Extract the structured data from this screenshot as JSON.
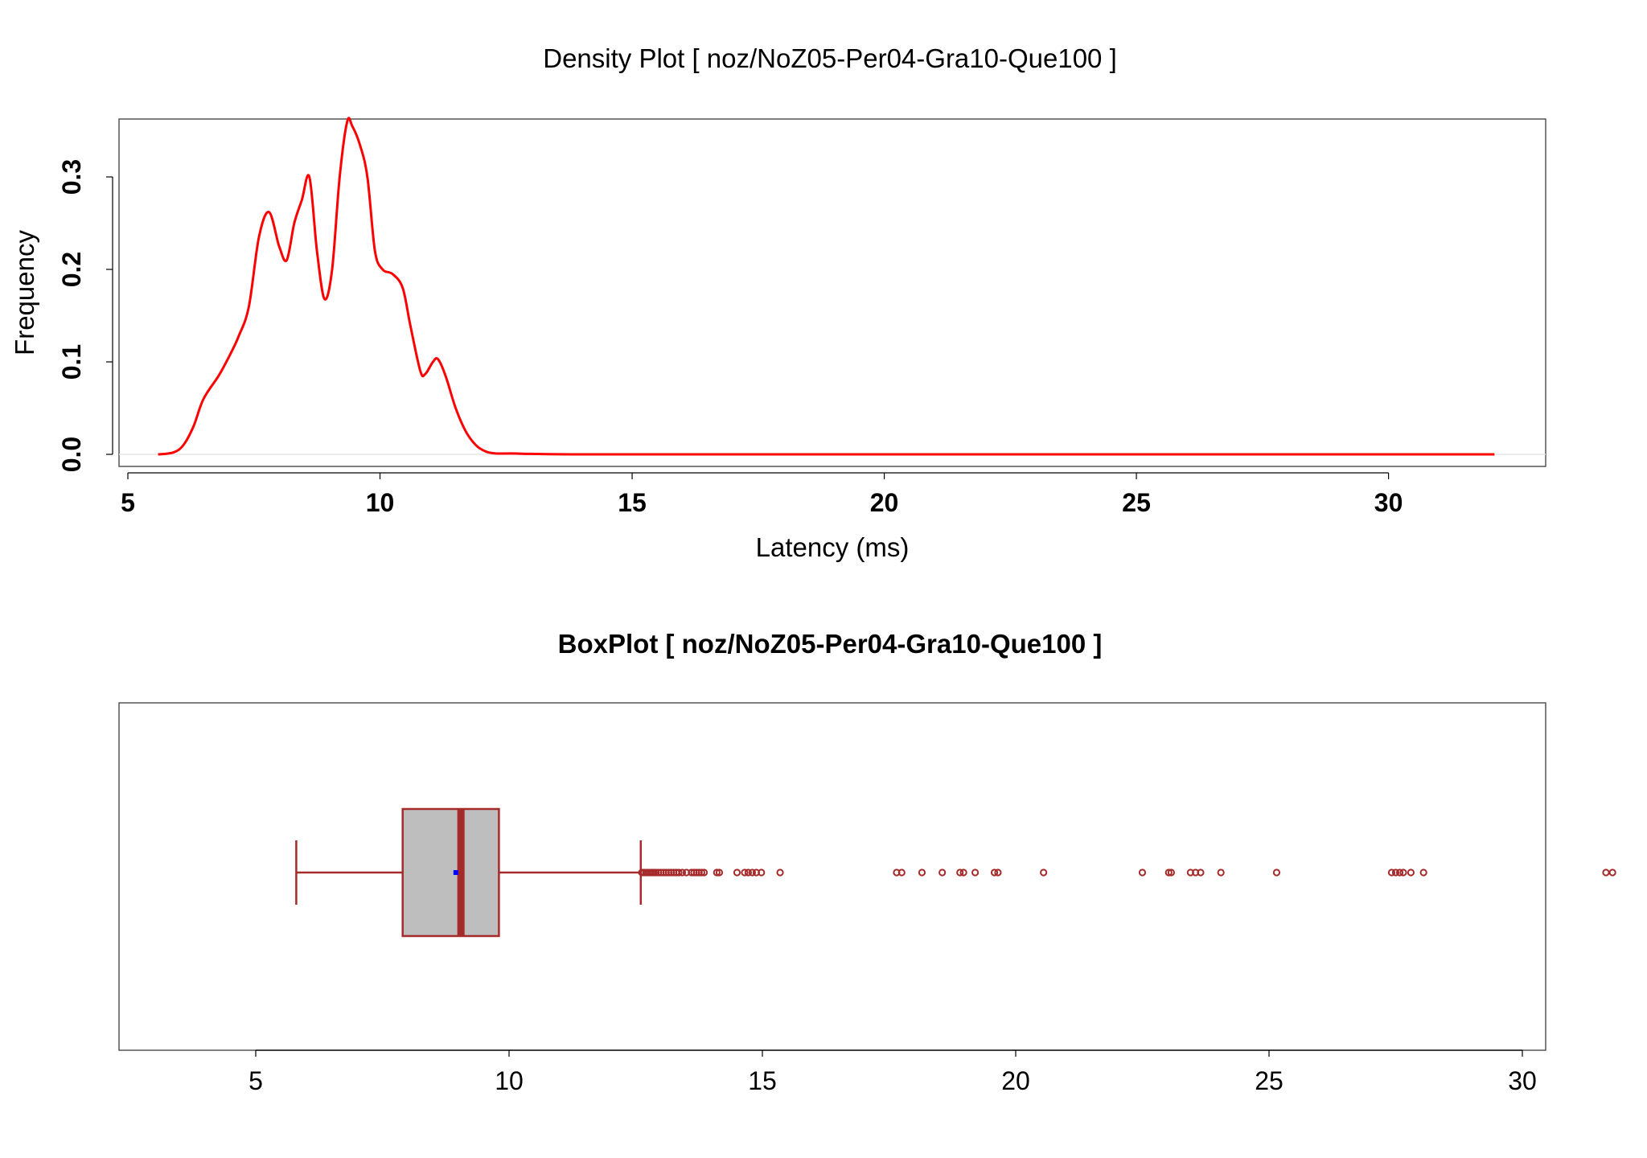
{
  "colors": {
    "density_line": "#ff0000",
    "box_stroke": "#a52a2a",
    "box_fill": "#bebebe",
    "mean_point": "#0000ff",
    "axis": "#000000",
    "baseline": "#e6e6e6"
  },
  "chart_data": [
    {
      "type": "line",
      "title": "Density Plot [ noz/NoZ05-Per04-Gra10-Que100 ]",
      "xlabel": "Latency (ms)",
      "ylabel": "Frequency",
      "xlim": [
        5,
        32
      ],
      "ylim": [
        0,
        0.36
      ],
      "x_ticks": [
        5,
        10,
        15,
        20,
        25,
        30
      ],
      "x_tick_labels": [
        "5",
        "10",
        "15",
        "20",
        "25",
        "30"
      ],
      "y_ticks": [
        0.0,
        0.1,
        0.2,
        0.3
      ],
      "y_tick_labels": [
        "0.0",
        "0.1",
        "0.2",
        "0.3"
      ],
      "grid": false,
      "series": [
        {
          "x": [
            5.6,
            5.9,
            6.1,
            6.3,
            6.5,
            6.8,
            7.0,
            7.2,
            7.4,
            7.6,
            7.8,
            8.0,
            8.15,
            8.3,
            8.45,
            8.6,
            8.75,
            8.9,
            9.05,
            9.2,
            9.35,
            9.45,
            9.6,
            9.75,
            9.9,
            10.05,
            10.25,
            10.45,
            10.6,
            10.8,
            10.9,
            11.05,
            11.15,
            11.3,
            11.5,
            11.7,
            11.9,
            12.1,
            12.3,
            12.6,
            13.0,
            14.0,
            16.0,
            20.0,
            24.0,
            28.0,
            32.1
          ],
          "y": [
            0.0,
            0.002,
            0.01,
            0.03,
            0.06,
            0.085,
            0.105,
            0.128,
            0.16,
            0.235,
            0.262,
            0.225,
            0.21,
            0.25,
            0.275,
            0.3,
            0.22,
            0.168,
            0.2,
            0.3,
            0.36,
            0.355,
            0.335,
            0.3,
            0.22,
            0.2,
            0.195,
            0.18,
            0.14,
            0.09,
            0.087,
            0.1,
            0.103,
            0.085,
            0.05,
            0.025,
            0.01,
            0.003,
            0.001,
            0.001,
            0.0005,
            0.0,
            0.0,
            0.0,
            0.0,
            0.0,
            0.0
          ]
        }
      ]
    },
    {
      "type": "box",
      "title": "BoxPlot [ noz/NoZ05-Per04-Gra10-Que100 ]",
      "xlim": [
        5,
        32
      ],
      "x_ticks": [
        5,
        10,
        15,
        20,
        25,
        30
      ],
      "x_tick_labels": [
        "5",
        "10",
        "15",
        "20",
        "25",
        "30"
      ],
      "orientation": "horizontal",
      "whisker_low": 5.8,
      "q1": 7.9,
      "median": 9.05,
      "q3": 9.8,
      "whisker_high": 12.6,
      "mean": 8.95,
      "outliers": [
        12.62,
        12.66,
        12.7,
        12.74,
        12.78,
        12.82,
        12.86,
        12.9,
        12.95,
        13.0,
        13.05,
        13.1,
        13.15,
        13.2,
        13.25,
        13.3,
        13.35,
        13.42,
        13.5,
        13.6,
        13.65,
        13.7,
        13.75,
        13.8,
        13.85,
        14.1,
        14.15,
        14.5,
        14.65,
        14.72,
        14.8,
        14.88,
        14.98,
        15.35,
        17.65,
        17.75,
        18.15,
        18.55,
        18.9,
        18.97,
        19.2,
        19.58,
        19.65,
        20.55,
        22.5,
        23.02,
        23.07,
        23.45,
        23.55,
        23.65,
        24.05,
        25.15,
        27.42,
        27.5,
        27.58,
        27.65,
        27.8,
        28.05,
        31.65,
        31.78
      ]
    }
  ]
}
